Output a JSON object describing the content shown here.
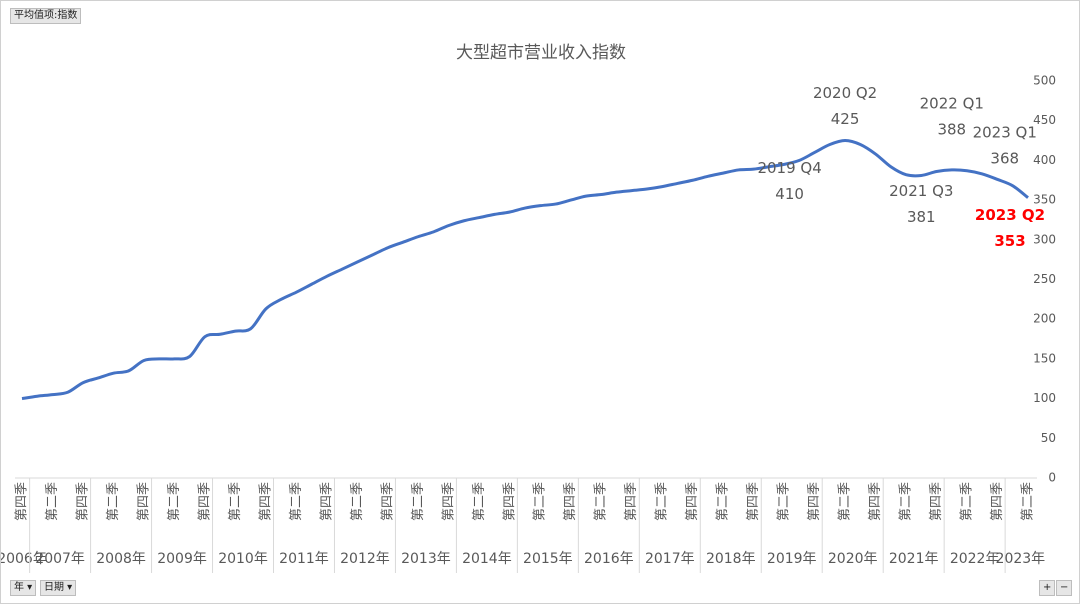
{
  "ui": {
    "value_field": "平均值项:指数",
    "filters": [
      "年",
      "日期"
    ],
    "zoom": [
      "+",
      "−"
    ]
  },
  "chart_data": {
    "type": "line",
    "title": "大型超市营业收入指数",
    "color": "#4472c4",
    "groups": [
      {
        "label": "2006年",
        "quarters": [
          "第四季"
        ]
      },
      {
        "label": "2007年",
        "quarters": [
          null,
          "第二季",
          null,
          "第四季"
        ]
      },
      {
        "label": "2008年",
        "quarters": [
          null,
          "第二季",
          null,
          "第四季"
        ]
      },
      {
        "label": "2009年",
        "quarters": [
          null,
          "第二季",
          null,
          "第四季"
        ]
      },
      {
        "label": "2010年",
        "quarters": [
          null,
          "第二季",
          null,
          "第四季"
        ]
      },
      {
        "label": "2011年",
        "quarters": [
          null,
          "第二季",
          null,
          "第四季"
        ]
      },
      {
        "label": "2012年",
        "quarters": [
          null,
          "第二季",
          null,
          "第四季"
        ]
      },
      {
        "label": "2013年",
        "quarters": [
          null,
          "第二季",
          null,
          "第四季"
        ]
      },
      {
        "label": "2014年",
        "quarters": [
          null,
          "第二季",
          null,
          "第四季"
        ]
      },
      {
        "label": "2015年",
        "quarters": [
          null,
          "第二季",
          null,
          "第四季"
        ]
      },
      {
        "label": "2016年",
        "quarters": [
          null,
          "第二季",
          null,
          "第四季"
        ]
      },
      {
        "label": "2017年",
        "quarters": [
          null,
          "第二季",
          null,
          "第四季"
        ]
      },
      {
        "label": "2018年",
        "quarters": [
          null,
          "第二季",
          null,
          "第四季"
        ]
      },
      {
        "label": "2019年",
        "quarters": [
          null,
          "第二季",
          null,
          "第四季"
        ]
      },
      {
        "label": "2020年",
        "quarters": [
          null,
          "第二季",
          null,
          "第四季"
        ]
      },
      {
        "label": "2021年",
        "quarters": [
          null,
          "第二季",
          null,
          "第四季"
        ]
      },
      {
        "label": "2022年",
        "quarters": [
          null,
          "第二季",
          null,
          "第四季"
        ]
      },
      {
        "label": "2023年",
        "quarters": [
          null,
          "第二季"
        ]
      }
    ],
    "values": [
      100,
      103,
      105,
      108,
      120,
      126,
      132,
      135,
      148,
      150,
      150,
      153,
      178,
      181,
      185,
      188,
      213,
      225,
      234,
      244,
      254,
      263,
      272,
      281,
      290,
      297,
      304,
      310,
      318,
      324,
      328,
      332,
      335,
      340,
      343,
      345,
      350,
      355,
      357,
      360,
      362,
      364,
      367,
      371,
      375,
      380,
      384,
      388,
      389,
      392,
      395,
      400,
      410,
      420,
      425,
      420,
      408,
      392,
      382,
      381,
      386,
      388,
      387,
      383,
      376,
      368,
      353
    ],
    "point_labels": [
      null,
      null,
      null,
      null,
      null,
      null,
      null,
      null,
      null,
      null,
      null,
      null,
      null,
      null,
      null,
      null,
      null,
      null,
      null,
      null,
      null,
      null,
      null,
      null,
      null,
      null,
      null,
      null,
      null,
      null,
      null,
      null,
      null,
      null,
      null,
      null,
      null,
      null,
      null,
      null,
      null,
      null,
      null,
      null,
      null,
      null,
      null,
      null,
      null,
      null,
      null,
      null,
      {
        "text": "2019 Q4"
      },
      null,
      {
        "text": "2020 Q2"
      },
      null,
      null,
      null,
      null,
      {
        "text": "2021 Q3"
      },
      null,
      {
        "text": "2022 Q1"
      },
      null,
      null,
      null,
      {
        "text": "2023 Q1"
      },
      {
        "text": "2023 Q2",
        "color": "#ff0000",
        "bold": true
      }
    ],
    "ylim": [
      0,
      500
    ],
    "yticks": [
      0,
      50,
      100,
      150,
      200,
      250,
      300,
      350,
      400,
      450,
      500
    ],
    "grid": false
  }
}
